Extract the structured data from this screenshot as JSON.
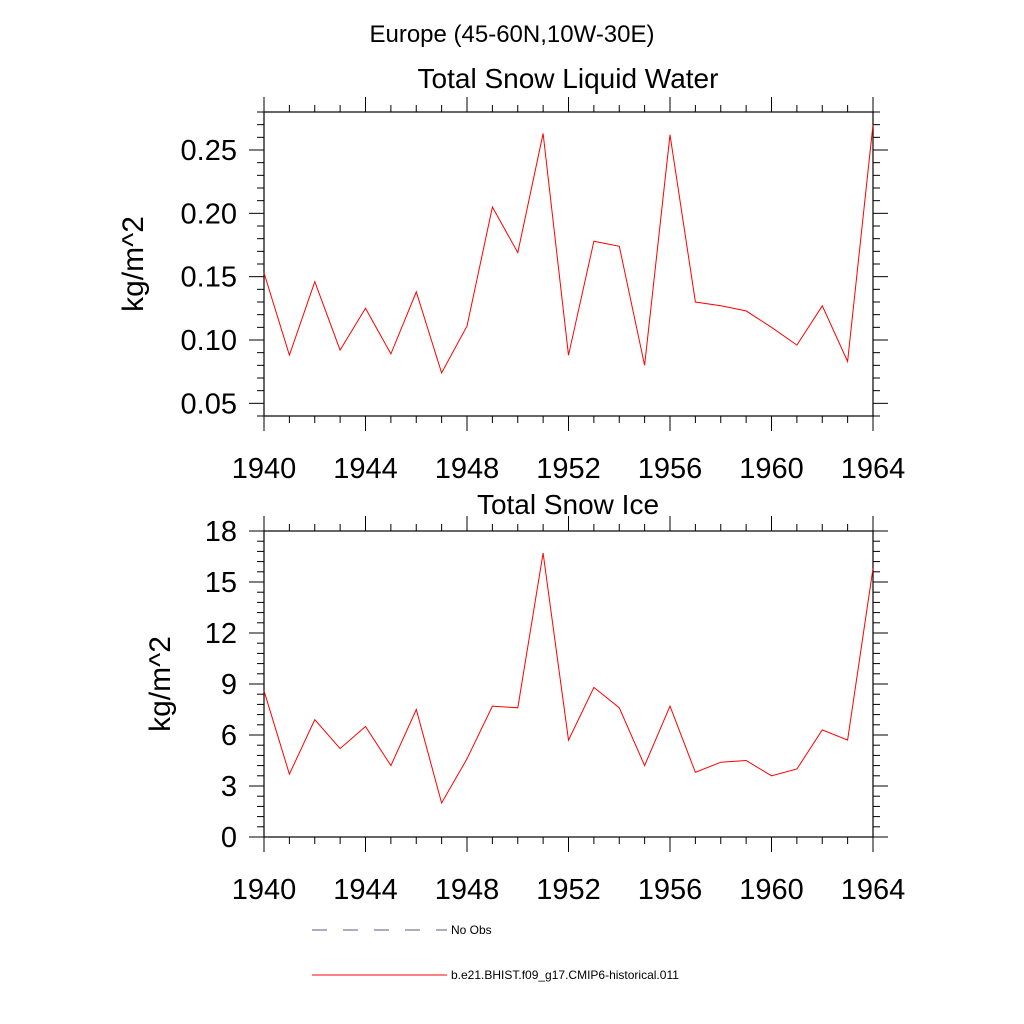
{
  "figure": {
    "title": "Europe (45-60N,10W-30E)"
  },
  "chart_data": [
    {
      "type": "line",
      "title": "Total Snow Liquid Water",
      "xlabel": "",
      "ylabel": "kg/m^2",
      "xlim": [
        1940,
        1964
      ],
      "ylim": [
        0.04,
        0.28
      ],
      "x_ticks": [
        "1940",
        "1944",
        "1948",
        "1952",
        "1956",
        "1960",
        "1964"
      ],
      "y_ticks": [
        "0.05",
        "0.10",
        "0.15",
        "0.20",
        "0.25"
      ],
      "x": [
        1940,
        1941,
        1942,
        1943,
        1944,
        1945,
        1946,
        1947,
        1948,
        1949,
        1950,
        1951,
        1952,
        1953,
        1954,
        1955,
        1956,
        1957,
        1958,
        1959,
        1960,
        1961,
        1962,
        1963,
        1964
      ],
      "series": [
        {
          "name": "b.e21.BHIST.f09_g17.CMIP6-historical.011",
          "color": "#ff0000",
          "values": [
            0.153,
            0.088,
            0.146,
            0.092,
            0.125,
            0.089,
            0.138,
            0.074,
            0.111,
            0.205,
            0.169,
            0.263,
            0.088,
            0.178,
            0.174,
            0.08,
            0.262,
            0.13,
            0.127,
            0.123,
            0.11,
            0.096,
            0.127,
            0.083,
            0.27
          ]
        }
      ],
      "grid": false
    },
    {
      "type": "line",
      "title": "Total Snow Ice",
      "xlabel": "",
      "ylabel": "kg/m^2",
      "xlim": [
        1940,
        1964
      ],
      "ylim": [
        0,
        18
      ],
      "x_ticks": [
        "1940",
        "1944",
        "1948",
        "1952",
        "1956",
        "1960",
        "1964"
      ],
      "y_ticks": [
        "0",
        "3",
        "6",
        "9",
        "12",
        "15",
        "18"
      ],
      "x": [
        1940,
        1941,
        1942,
        1943,
        1944,
        1945,
        1946,
        1947,
        1948,
        1949,
        1950,
        1951,
        1952,
        1953,
        1954,
        1955,
        1956,
        1957,
        1958,
        1959,
        1960,
        1961,
        1962,
        1963,
        1964
      ],
      "series": [
        {
          "name": "b.e21.BHIST.f09_g17.CMIP6-historical.011",
          "color": "#ff0000",
          "values": [
            8.6,
            3.7,
            6.9,
            5.2,
            6.5,
            4.2,
            7.5,
            2.0,
            4.6,
            7.7,
            7.6,
            16.7,
            5.7,
            8.8,
            7.6,
            4.2,
            7.7,
            3.8,
            4.4,
            4.5,
            3.6,
            4.0,
            6.3,
            5.7,
            15.8
          ]
        }
      ],
      "grid": false
    }
  ],
  "legend": {
    "placement": "bottom",
    "items": [
      {
        "label": "No Obs",
        "color": "#5a5a8a",
        "dash": true
      },
      {
        "label": "b.e21.BHIST.f09_g17.CMIP6-historical.011",
        "color": "#ff0000",
        "dash": false
      }
    ]
  }
}
